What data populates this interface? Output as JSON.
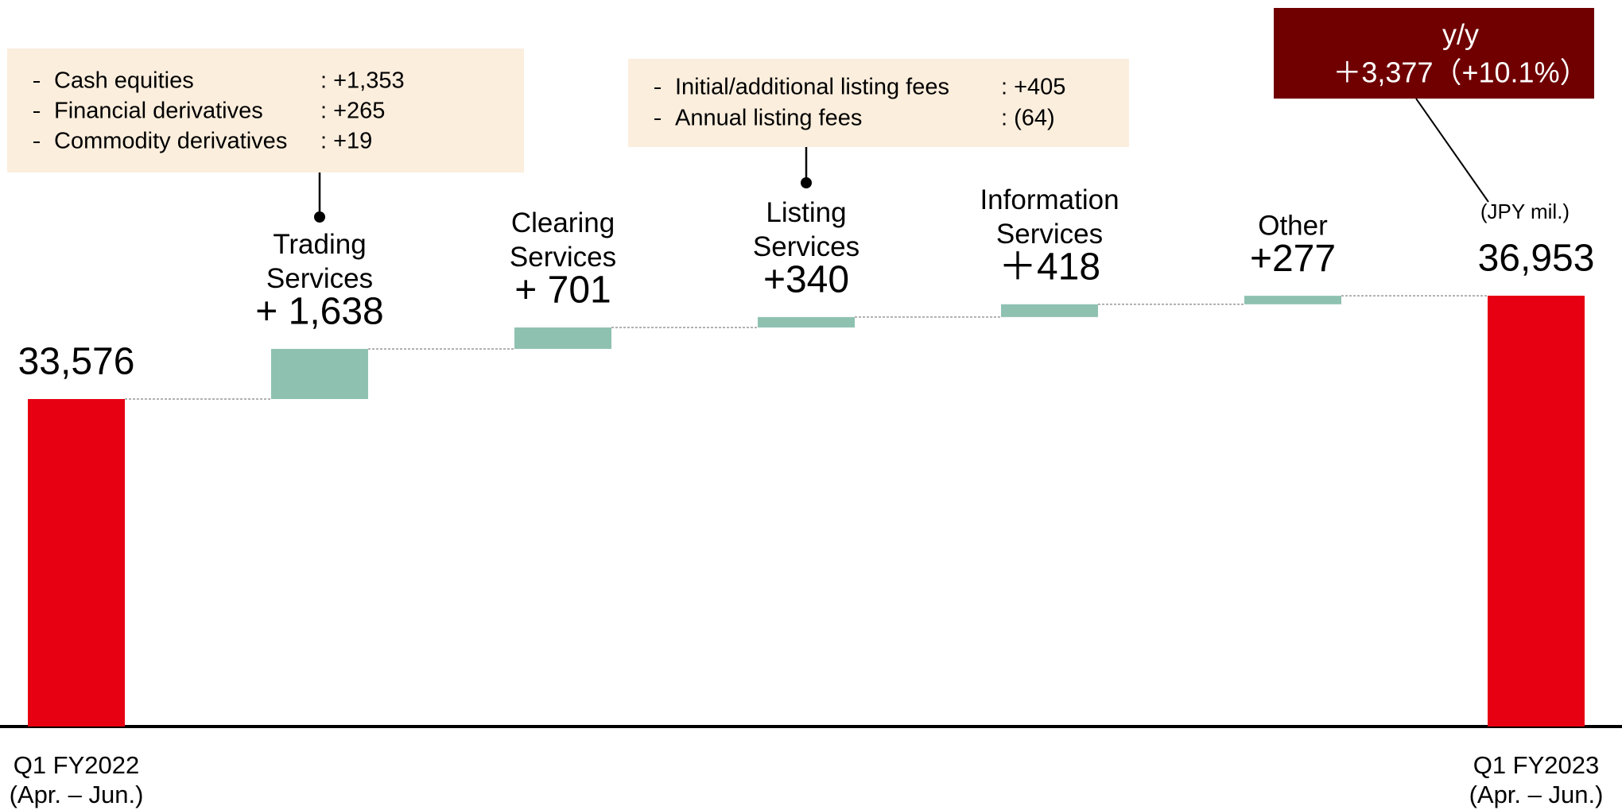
{
  "chart_data": {
    "type": "waterfall",
    "categories": [
      [
        "Q1 FY2022",
        "(Apr. – Jun.)"
      ],
      [
        "Trading",
        "Services"
      ],
      [
        "Clearing",
        "Services"
      ],
      [
        "Listing",
        "Services"
      ],
      [
        "Information",
        "Services"
      ],
      [
        "Other"
      ],
      [
        "Q1 FY2023",
        "(Apr. – Jun.)"
      ]
    ],
    "measures": [
      "total",
      "relative",
      "relative",
      "relative",
      "relative",
      "relative",
      "total"
    ],
    "values": [
      33576,
      1638,
      701,
      340,
      418,
      277,
      36953
    ],
    "value_labels": [
      "33,576",
      "+ 1,638",
      "+ 701",
      "+340",
      "＋418",
      "+277",
      "36,953"
    ],
    "colors": {
      "total": "#e60012",
      "relative": "#8fc1b1"
    },
    "unit_label": "(JPY mil.)",
    "change_box": {
      "title": "y/y",
      "text": "＋3,377（+10.1%）"
    },
    "callouts": [
      {
        "category": 1,
        "items": [
          {
            "label": "Cash equities",
            "value": ": +1,353"
          },
          {
            "label": "Financial derivatives",
            "value": ": +265"
          },
          {
            "label": "Commodity derivatives",
            "value": ": +19"
          }
        ]
      },
      {
        "category": 3,
        "items": [
          {
            "label": "Initial/additional listing fees",
            "value": ": +405"
          },
          {
            "label": "Annual listing fees",
            "value": ": (64)"
          }
        ]
      }
    ]
  }
}
